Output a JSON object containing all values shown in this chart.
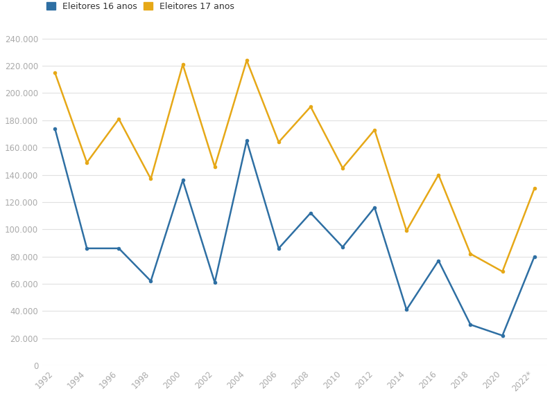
{
  "years": [
    1992,
    1994,
    1996,
    1998,
    2000,
    2002,
    2004,
    2006,
    2008,
    2010,
    2012,
    2014,
    2016,
    2018,
    2020,
    2022
  ],
  "eleitores_16": [
    174000,
    86000,
    86000,
    62000,
    136000,
    61000,
    165000,
    86000,
    112000,
    87000,
    116000,
    41000,
    77000,
    30000,
    22000,
    80000
  ],
  "eleitores_17": [
    215000,
    149000,
    181000,
    137000,
    221000,
    146000,
    224000,
    164000,
    190000,
    145000,
    173000,
    99000,
    140000,
    82000,
    69000,
    130000
  ],
  "color_16": "#2e6fa3",
  "color_17": "#e6a817",
  "legend_16": "Eleitores 16 anos",
  "legend_17": "Eleitores 17 anos",
  "ylim": [
    0,
    250000
  ],
  "yticks": [
    0,
    20000,
    40000,
    60000,
    80000,
    100000,
    120000,
    140000,
    160000,
    180000,
    200000,
    220000,
    240000
  ],
  "bg_color": "#ffffff",
  "grid_color": "#e0e0e0",
  "tick_label_color": "#aaaaaa",
  "line_width": 1.8,
  "marker_size": 4
}
